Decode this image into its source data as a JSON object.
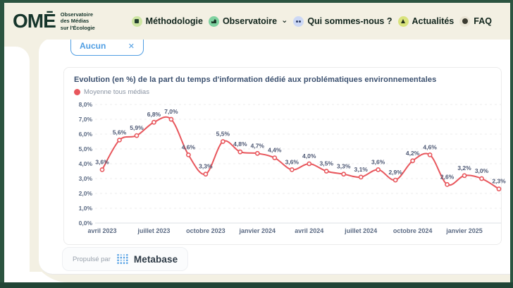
{
  "palette": {
    "frame_green": "#2b5440",
    "navbar_beige": "#f3f0e3",
    "accent_blue": "#509ee3",
    "line_red": "#e8565c",
    "text_navy": "#4c5773"
  },
  "navbar": {
    "logo": {
      "text": "OMĒ",
      "tagline_lines": [
        "Observatoire",
        "des Médias",
        "sur l'Écologie"
      ]
    },
    "dropdown_caret": "⌄",
    "items": [
      {
        "label": "Méthodologie",
        "icon": "document-icon",
        "icon_bg": "#cde5a2"
      },
      {
        "label": "Observatoire",
        "icon": "chart-icon",
        "icon_bg": "#7fd2a0",
        "has_dropdown": true
      },
      {
        "label": "Qui sommes-nous ?",
        "icon": "people-icon",
        "icon_bg": "#ccd8f5"
      },
      {
        "label": "Actualités",
        "icon": "news-icon",
        "icon_bg": "#d9e37c"
      },
      {
        "label": "FAQ",
        "icon": "dot-icon",
        "icon_bg": "#eae5d5"
      }
    ]
  },
  "filter_chip": {
    "label": "Aucun",
    "close": "✕"
  },
  "chart_card": {
    "title": "Evolution (en %) de la part du temps d'information dédié aux problématiques environnementales",
    "legend": [
      {
        "label": "Moyenne tous médias",
        "color": "#e8565c"
      }
    ]
  },
  "chart_data": {
    "type": "line",
    "title": "Evolution (en %) de la part du temps d'information dédié aux problématiques environnementales",
    "series": [
      {
        "name": "Moyenne tous médias",
        "color": "#e8565c",
        "values": [
          3.6,
          5.6,
          5.9,
          6.8,
          7.0,
          4.6,
          3.3,
          5.5,
          4.8,
          4.7,
          4.4,
          3.6,
          4.0,
          3.5,
          3.3,
          3.1,
          3.6,
          2.9,
          4.2,
          4.6,
          2.6,
          3.2,
          3.0,
          2.3
        ]
      }
    ],
    "point_labels": [
      "3,6%",
      "5,6%",
      "5,9%",
      "6,8%",
      "7,0%",
      "4,6%",
      "3,3%",
      "5,5%",
      "4,8%",
      "4,7%",
      "4,4%",
      "3,6%",
      "4,0%",
      "3,5%",
      "3,3%",
      "3,1%",
      "3,6%",
      "2,9%",
      "4,2%",
      "4,6%",
      "2,6%",
      "3,2%",
      "3,0%",
      "2,3%"
    ],
    "x_tick_labels": [
      "avril 2023",
      "juillet 2023",
      "octobre 2023",
      "janvier 2024",
      "avril 2024",
      "juillet 2024",
      "octobre 2024",
      "janvier 2025"
    ],
    "x_tick_indices": [
      0,
      3,
      6,
      9,
      12,
      15,
      18,
      21
    ],
    "y_tick_labels": [
      "0,0%",
      "1,0%",
      "2,0%",
      "3,0%",
      "4,0%",
      "5,0%",
      "6,0%",
      "7,0%",
      "8,0%"
    ],
    "ylim": [
      0,
      8
    ],
    "grid": "horizontal-dashed",
    "legend_position": "top-left"
  },
  "footer": {
    "powered_by": "Propulsé par",
    "brand": "Metabase"
  }
}
